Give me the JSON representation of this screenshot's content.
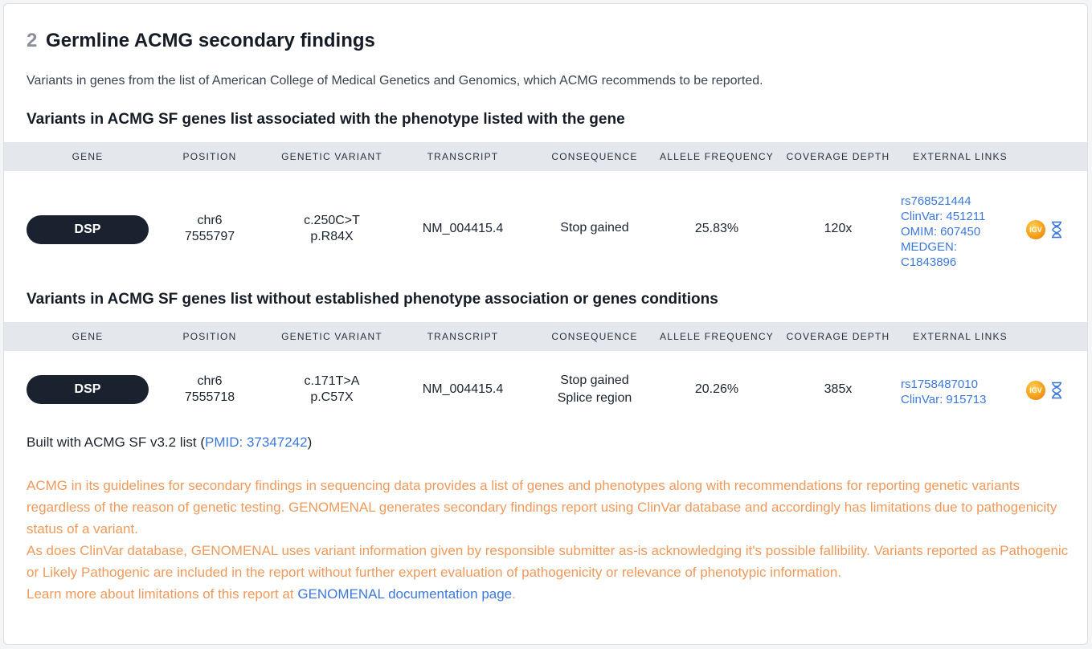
{
  "section": {
    "number": "2",
    "title": "Germline ACMG secondary findings",
    "intro": "Variants in genes from the list of American College of Medical Genetics and Genomics, which ACMG recommends to be reported."
  },
  "columns": [
    "Gene",
    "Position",
    "Genetic variant",
    "Transcript",
    "Consequence",
    "Allele frequency",
    "Coverage depth",
    "External links"
  ],
  "tables": [
    {
      "heading": "Variants in ACMG SF genes list associated with the phenotype listed with the gene",
      "rows": [
        {
          "gene": "DSP",
          "position_chr": "chr6",
          "position_pos": "7555797",
          "variant_c": "c.250C>T",
          "variant_p": "p.R84X",
          "transcript": "NM_004415.4",
          "consequence_1": "Stop gained",
          "consequence_2": "",
          "allele_frequency": "25.83%",
          "coverage_depth": "120x",
          "links": [
            "rs768521444",
            "ClinVar: 451211",
            "OMIM: 607450",
            "MEDGEN:",
            "C1843896"
          ],
          "igv_label": "IGV"
        }
      ]
    },
    {
      "heading": "Variants in ACMG SF genes list without established phenotype association or genes conditions",
      "rows": [
        {
          "gene": "DSP",
          "position_chr": "chr6",
          "position_pos": "7555718",
          "variant_c": "c.171T>A",
          "variant_p": "p.C57X",
          "transcript": "NM_004415.4",
          "consequence_1": "Stop gained",
          "consequence_2": "Splice region",
          "allele_frequency": "20.26%",
          "coverage_depth": "385x",
          "links": [
            "rs1758487010",
            "ClinVar: 915713"
          ],
          "igv_label": "IGV"
        }
      ]
    }
  ],
  "footer": {
    "built_prefix": "Built with ACMG SF v3.2 list (",
    "pmid_link": "PMID: 37347242",
    "built_suffix": ")"
  },
  "disclaimer": {
    "p1": "ACMG in its guidelines for secondary findings in sequencing data provides a list of genes and phenotypes along with recommendations for reporting genetic variants regardless of the reason of genetic testing. GENOMENAL generates secondary findings report using ClinVar database and accordingly has limitations due to pathogenicity status of a variant.",
    "p2": "As does ClinVar database, GENOMENAL uses variant information given by responsible submitter as-is acknowledging it's possible fallibility. Variants reported as Pathogenic or Likely Pathogenic are included in the report without further expert evaluation of pathogenicity or relevance of phenotypic information.",
    "p3_prefix": "Learn more about limitations of this report at ",
    "p3_link": "GENOMENAL documentation page",
    "p3_suffix": "."
  },
  "colors": {
    "accent_link": "#3d78d8",
    "warning_text": "#ef9a5c",
    "pill_bg": "#1a2230",
    "header_bg": "#e4e7ec"
  },
  "icons": [
    "igv-icon",
    "dna-icon"
  ]
}
